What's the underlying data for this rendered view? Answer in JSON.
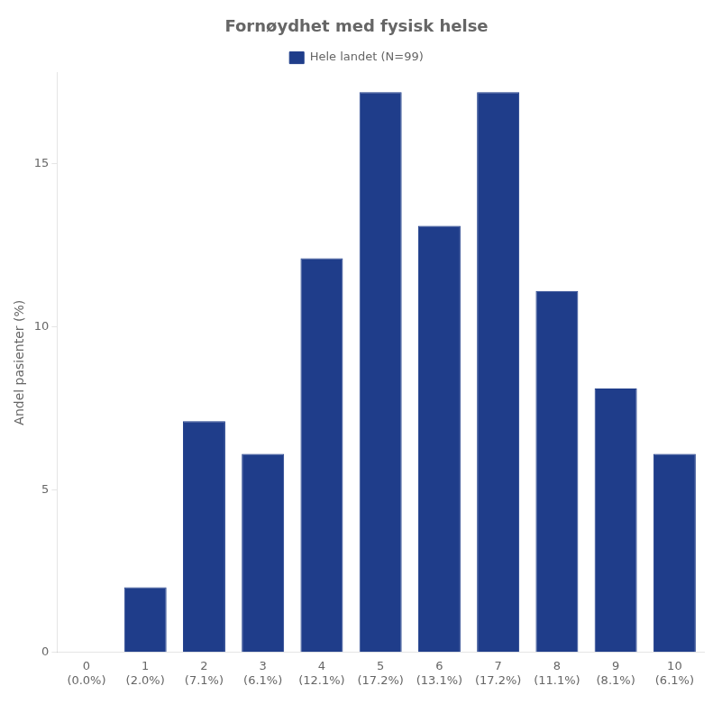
{
  "chart_data": {
    "type": "bar",
    "title": "Fornøydhet med fysisk helse",
    "ylabel": "Andel pasienter (%)",
    "categories": [
      "0\n(0.0%)",
      "1\n(2.0%)",
      "2\n(7.1%)",
      "3\n(6.1%)",
      "4\n(12.1%)",
      "5\n(17.2%)",
      "6\n(13.1%)",
      "7\n(17.2%)",
      "8\n(11.1%)",
      "9\n(8.1%)",
      "10\n(6.1%)"
    ],
    "series": [
      {
        "name": "Hele landet (N=99)",
        "color": "#1F3D8A",
        "values": [
          0.0,
          2.0,
          7.1,
          6.1,
          12.1,
          17.2,
          13.1,
          17.2,
          11.1,
          8.1,
          6.1
        ]
      }
    ],
    "ylim": [
      0,
      17.8
    ],
    "yticks": [
      0,
      5,
      10,
      15
    ],
    "grid": false,
    "legend": "top"
  }
}
